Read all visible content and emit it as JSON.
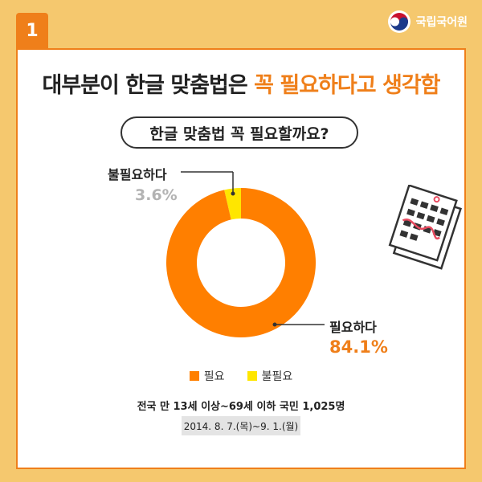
{
  "page": {
    "badge_number": "1",
    "brand_name": "국립국어원",
    "headline_part1": "대부분이 한글 맞춤법은 ",
    "headline_part2": "꼭 필요하다고 생각함",
    "question": "한글 맞춤법 꼭 필요할까요?",
    "survey_note": "전국 만 13세 이상~69세 이하 국민 1,025명",
    "survey_date": "2014. 8. 7.(목)~9. 1.(월)"
  },
  "colors": {
    "background": "#f5c86e",
    "accent": "#ef7f1a",
    "need": "#ff7f00",
    "no_need": "#ffe600",
    "gray": "#b3b3b3"
  },
  "chart_data": {
    "type": "pie",
    "donut": true,
    "series": [
      {
        "label": "필요하다",
        "value": 84.1,
        "value_text": "84.1%",
        "color": "#ff7f00"
      },
      {
        "label": "불필요하다",
        "value": 3.6,
        "value_text": "3.6%",
        "color": "#ffe600"
      }
    ],
    "legend": [
      "필요",
      "불필요"
    ],
    "legend_placement": "bottom"
  }
}
